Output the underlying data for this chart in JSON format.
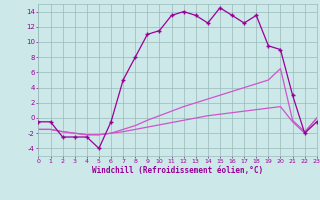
{
  "hours": [
    0,
    1,
    2,
    3,
    4,
    5,
    6,
    7,
    8,
    9,
    10,
    11,
    12,
    13,
    14,
    15,
    16,
    17,
    18,
    19,
    20,
    21,
    22,
    23
  ],
  "temp_main": [
    -0.5,
    -0.5,
    -2.5,
    -2.5,
    -2.5,
    -4.0,
    -0.5,
    5.0,
    8.0,
    11.0,
    11.5,
    13.5,
    14.0,
    13.5,
    12.5,
    14.5,
    13.5,
    12.5,
    13.5,
    9.5,
    9.0,
    3.0,
    -2.0,
    -0.5
  ],
  "temp_trend_upper": [
    -1.5,
    -1.5,
    -1.8,
    -2.0,
    -2.2,
    -2.2,
    -2.0,
    -1.5,
    -1.0,
    -0.3,
    0.3,
    0.9,
    1.5,
    2.0,
    2.5,
    3.0,
    3.5,
    4.0,
    4.5,
    5.0,
    6.5,
    -0.3,
    -1.8,
    0.0
  ],
  "temp_trend_lower": [
    -1.5,
    -1.5,
    -1.8,
    -2.0,
    -2.2,
    -2.2,
    -2.0,
    -1.8,
    -1.5,
    -1.2,
    -0.9,
    -0.6,
    -0.3,
    0.0,
    0.3,
    0.5,
    0.7,
    0.9,
    1.1,
    1.3,
    1.5,
    -0.5,
    -2.0,
    0.0
  ],
  "line_color_main": "#990099",
  "line_color_trend": "#cc55cc",
  "bg_color": "#cce8e8",
  "grid_color": "#99bbbb",
  "xlabel": "Windchill (Refroidissement éolien,°C)",
  "ylim": [
    -5,
    15
  ],
  "xlim": [
    0,
    23
  ],
  "yticks": [
    -4,
    -2,
    0,
    2,
    4,
    6,
    8,
    10,
    12,
    14
  ],
  "xticks": [
    0,
    1,
    2,
    3,
    4,
    5,
    6,
    7,
    8,
    9,
    10,
    11,
    12,
    13,
    14,
    15,
    16,
    17,
    18,
    19,
    20,
    21,
    22,
    23
  ]
}
